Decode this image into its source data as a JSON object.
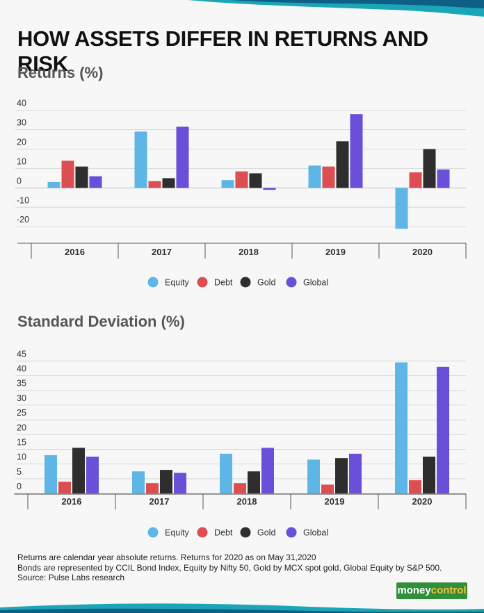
{
  "title": "HOW ASSETS DIFFER IN RETURNS AND RISK",
  "colors": {
    "equity": "#5db6e6",
    "debt": "#dd4e52",
    "gold": "#2e2e2e",
    "global": "#6a4fd9"
  },
  "chart_data": [
    {
      "type": "bar",
      "title": "Returns (%)",
      "categories": [
        "2016",
        "2017",
        "2018",
        "2019",
        "2020"
      ],
      "series": [
        {
          "name": "Equity",
          "values": [
            3,
            29,
            4,
            11.5,
            -21
          ]
        },
        {
          "name": "Debt",
          "values": [
            14,
            3.5,
            8.5,
            11,
            8
          ]
        },
        {
          "name": "Gold",
          "values": [
            11,
            5,
            7.5,
            24,
            20
          ]
        },
        {
          "name": "Global",
          "values": [
            6,
            31.5,
            -1,
            38,
            9.5
          ]
        }
      ],
      "yticks": [
        "40",
        "30",
        "20",
        "10",
        "0",
        "-10",
        "-20"
      ],
      "ylim": [
        -26,
        42
      ],
      "grid": true,
      "legend": "bottom"
    },
    {
      "type": "bar",
      "title": "Standard Deviation (%)",
      "categories": [
        "2016",
        "2017",
        "2018",
        "2019",
        "2020"
      ],
      "series": [
        {
          "name": "Equity",
          "values": [
            13,
            7.5,
            13.5,
            11.5,
            44.5
          ]
        },
        {
          "name": "Debt",
          "values": [
            4,
            3.5,
            3.5,
            3,
            4.5
          ]
        },
        {
          "name": "Gold",
          "values": [
            15.5,
            8,
            7.5,
            12,
            12.5
          ]
        },
        {
          "name": "Global",
          "values": [
            12.5,
            7,
            15.5,
            13.5,
            43
          ]
        }
      ],
      "yticks": [
        "45",
        "40",
        "35",
        "30",
        "25",
        "20",
        "15",
        "10",
        "5",
        "0"
      ],
      "ylim": [
        0,
        46.5
      ],
      "grid": true,
      "legend": "bottom"
    }
  ],
  "footnotes": [
    "Returns are calendar year absolute returns. Returns for 2020 as  on May 31,2020",
    "Bonds are represented by CCIL Bond Index, Equity by Nifty 50, Gold by MCX spot gold, Global Equity by S&P 500.",
    "Source: Pulse Labs research"
  ],
  "logo": {
    "part1": "money",
    "part2": "control"
  }
}
